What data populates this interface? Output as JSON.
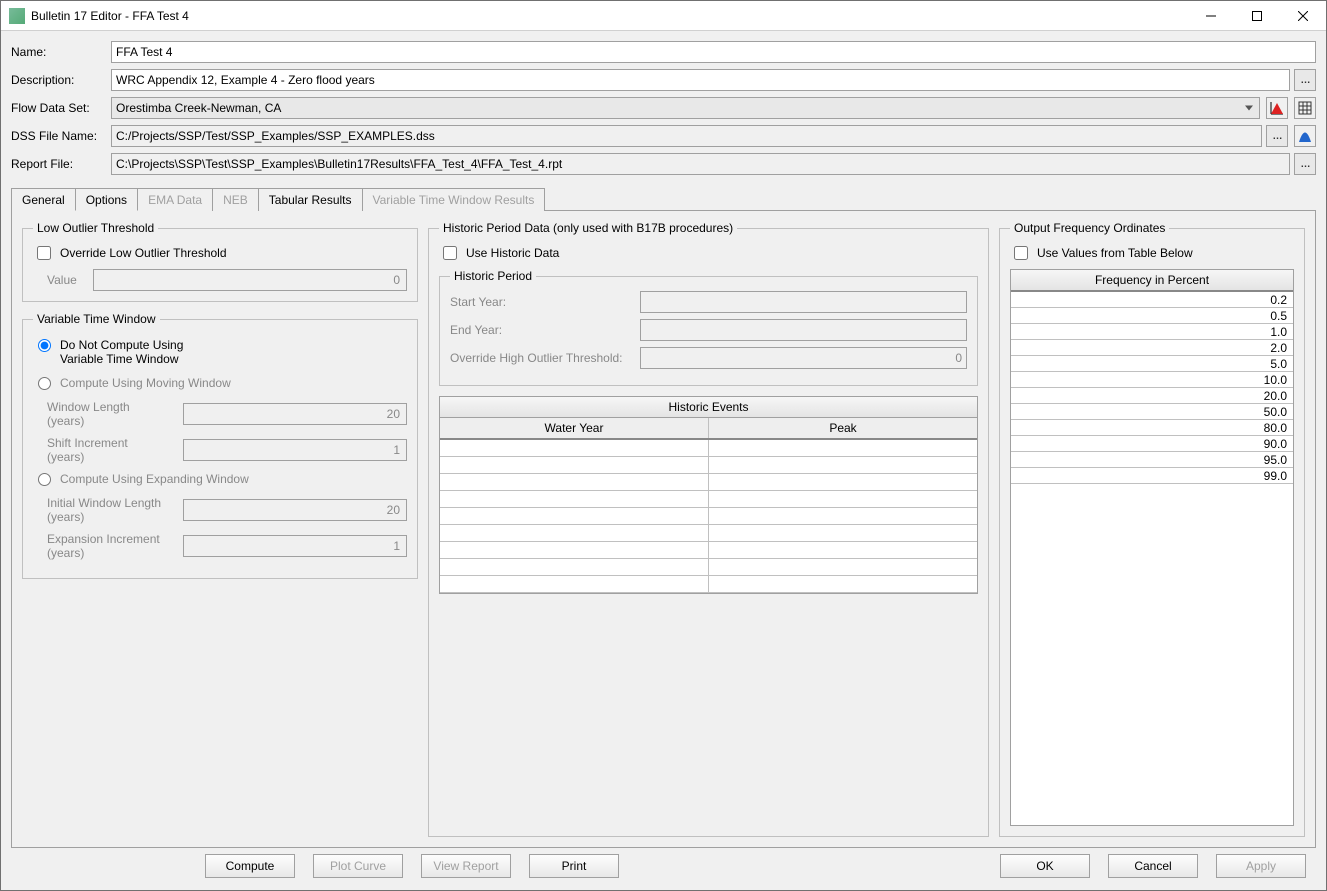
{
  "window": {
    "title": "Bulletin 17 Editor - FFA Test 4"
  },
  "form": {
    "name_label": "Name:",
    "name_value": "FFA Test 4",
    "description_label": "Description:",
    "description_value": "WRC Appendix 12, Example 4 - Zero flood years",
    "flow_label": "Flow Data Set:",
    "flow_value": "Orestimba Creek-Newman, CA",
    "dss_label": "DSS File Name:",
    "dss_value": "C:/Projects/SSP/Test/SSP_Examples/SSP_EXAMPLES.dss",
    "report_label": "Report File:",
    "report_value": "C:\\Projects\\SSP\\Test\\SSP_Examples\\Bulletin17Results\\FFA_Test_4\\FFA_Test_4.rpt"
  },
  "tabs": {
    "general": "General",
    "options": "Options",
    "ema": "EMA Data",
    "neb": "NEB",
    "tabular": "Tabular Results",
    "vtw": "Variable Time Window Results"
  },
  "low_outlier": {
    "legend": "Low Outlier Threshold",
    "override_label": "Override Low Outlier Threshold",
    "value_label": "Value",
    "value": "0"
  },
  "vtw": {
    "legend": "Variable Time Window",
    "opt1a": "Do Not Compute Using",
    "opt1b": "Variable Time Window",
    "opt2": "Compute Using Moving Window",
    "window_len_label_a": "Window Length",
    "years_suffix": "(years)",
    "window_len": "20",
    "shift_label": "Shift Increment",
    "shift": "1",
    "opt3": "Compute Using Expanding Window",
    "init_len_label": "Initial Window Length",
    "init_len": "20",
    "exp_inc_label": "Expansion Increment",
    "exp_inc": "1"
  },
  "historic": {
    "legend": "Historic Period Data (only used with B17B procedures)",
    "use_label": "Use Historic Data",
    "period_legend": "Historic Period",
    "start_label": "Start Year:",
    "end_label": "End Year:",
    "override_label": "Override High Outlier Threshold:",
    "override_value": "0",
    "events_header": "Historic Events",
    "col_water_year": "Water Year",
    "col_peak": "Peak"
  },
  "freq": {
    "legend": "Output Frequency Ordinates",
    "use_label": "Use Values from Table Below",
    "header": "Frequency in Percent",
    "values": [
      "0.2",
      "0.5",
      "1.0",
      "2.0",
      "5.0",
      "10.0",
      "20.0",
      "50.0",
      "80.0",
      "90.0",
      "95.0",
      "99.0"
    ]
  },
  "buttons": {
    "compute": "Compute",
    "plot": "Plot Curve",
    "view": "View Report",
    "print": "Print",
    "ok": "OK",
    "cancel": "Cancel",
    "apply": "Apply"
  }
}
